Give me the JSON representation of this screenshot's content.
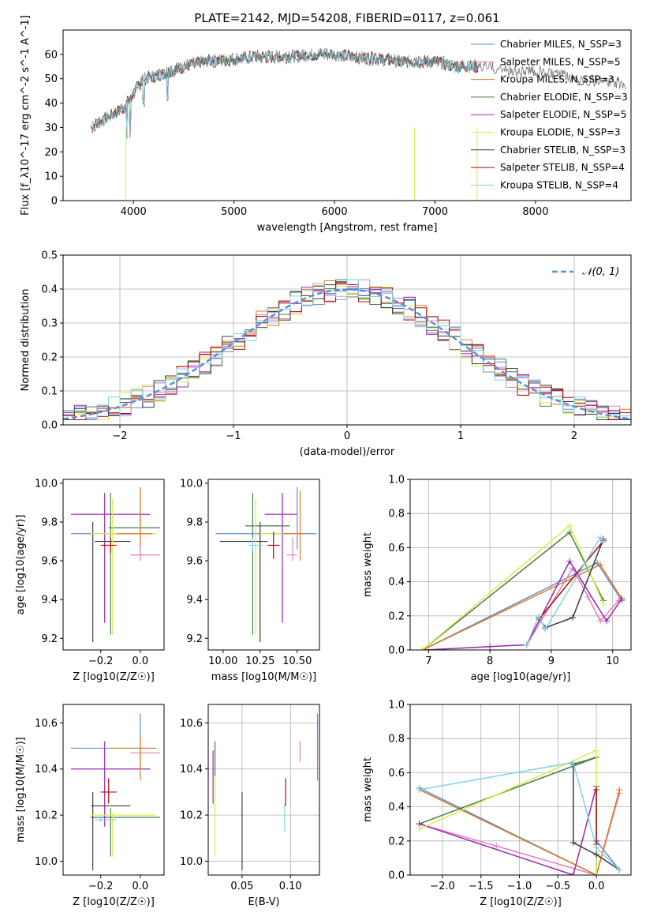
{
  "title": "PLATE=2142, MJD=54208, FIBERID=0117, z=0.061",
  "colors": {
    "chabrier_miles": "#5b8fd9",
    "salpeter_miles": "#e57fbc",
    "kroupa_miles": "#e07b20",
    "chabrier_elodie": "#4c7d4c",
    "salpeter_elodie": "#9b27b0",
    "kroupa_elodie": "#d7ee4a",
    "chabrier_stelib": "#3b3b3b",
    "salpeter_stelib": "#b3080a",
    "kroupa_stelib": "#7fd4e6"
  },
  "chart_data": [
    {
      "id": "spectrum",
      "type": "line",
      "xlabel": "wavelength [Angstrom, rest frame]",
      "ylabel": "Flux [f_λ10^-17 erg cm^-2 s^-1 A^-1]",
      "xlim": [
        3300,
        8950
      ],
      "ylim": [
        0,
        70
      ],
      "xticks": [
        4000,
        5000,
        6000,
        7000,
        8000
      ],
      "yticks": [
        0,
        10,
        20,
        30,
        40,
        50,
        60
      ],
      "legend_position": "top-right",
      "series": [
        {
          "name": "Chabrier MILES, N_SSP=3",
          "key": "chabrier_miles"
        },
        {
          "name": "Salpeter MILES, N_SSP=5",
          "key": "salpeter_miles"
        },
        {
          "name": "Kroupa MILES, N_SSP=3",
          "key": "kroupa_miles"
        },
        {
          "name": "Chabrier ELODIE, N_SSP=3",
          "key": "chabrier_elodie"
        },
        {
          "name": "Salpeter ELODIE, N_SSP=5",
          "key": "salpeter_elodie"
        },
        {
          "name": "Kroupa ELODIE, N_SSP=3",
          "key": "kroupa_elodie"
        },
        {
          "name": "Chabrier STELIB, N_SSP=3",
          "key": "chabrier_stelib"
        },
        {
          "name": "Salpeter STELIB, N_SSP=4",
          "key": "salpeter_stelib"
        },
        {
          "name": "Kroupa STELIB, N_SSP=4",
          "key": "kroupa_stelib"
        }
      ],
      "continuum": {
        "x": [
          3580,
          3700,
          3900,
          4000,
          4100,
          4300,
          4500,
          4700,
          5000,
          5200,
          5500,
          5800,
          6000,
          6200,
          6500,
          6700,
          7000,
          7200,
          7500,
          7800,
          8000,
          8300,
          8600,
          8900
        ],
        "y": [
          30,
          33,
          38,
          44,
          50,
          52,
          55,
          57,
          58,
          59,
          59,
          60,
          60,
          59,
          58,
          57,
          57,
          55,
          55,
          53,
          53,
          51,
          49,
          48
        ]
      }
    },
    {
      "id": "residuals",
      "type": "bar",
      "xlabel": "(data-model)/error",
      "ylabel": "Normed distribution",
      "xlim": [
        -2.5,
        2.5
      ],
      "ylim": [
        0,
        0.5
      ],
      "xticks": [
        -2,
        -1,
        0,
        1,
        2
      ],
      "yticks": [
        0.0,
        0.1,
        0.2,
        0.3,
        0.4,
        0.5
      ],
      "reference_curve": "𝒩(0,1)",
      "bin_edges_start": -2.5,
      "bin_width": 0.1
    },
    {
      "id": "age_vs_Z",
      "type": "scatter",
      "xlabel": "Z [log10(Z/Z☉)]",
      "ylabel": "age  [log10(age/yr)]",
      "xlim": [
        -0.39,
        0.12
      ],
      "ylim": [
        9.14,
        10.02
      ],
      "xticks": [
        -0.2,
        0.0
      ],
      "yticks": [
        9.2,
        9.4,
        9.6,
        9.8,
        10.0
      ]
    },
    {
      "id": "age_vs_mass",
      "type": "scatter",
      "xlabel": "mass [log10(M/M☉)]",
      "ylabel": "",
      "xlim": [
        9.9,
        10.65
      ],
      "ylim": [
        9.14,
        10.02
      ],
      "xticks": [
        10.0,
        10.25,
        10.5
      ],
      "yticks": [
        9.2,
        9.4,
        9.6,
        9.8,
        10.0
      ]
    },
    {
      "id": "weight_vs_age",
      "type": "line",
      "xlabel": "age  [log10(age/yr)]",
      "ylabel": "mass weight",
      "xlim": [
        6.7,
        10.3
      ],
      "ylim": [
        0,
        1
      ],
      "xticks": [
        7,
        8,
        9,
        10
      ],
      "yticks": [
        0.0,
        0.2,
        0.4,
        0.6,
        0.8,
        1.0
      ]
    },
    {
      "id": "mass_vs_Z",
      "type": "scatter",
      "xlabel": "Z [log10(Z/Z☉)]",
      "ylabel": "mass [log10(M/M☉)]",
      "xlim": [
        -0.39,
        0.12
      ],
      "ylim": [
        9.94,
        10.68
      ],
      "xticks": [
        -0.2,
        0.0
      ],
      "yticks": [
        10.0,
        10.2,
        10.4,
        10.6
      ]
    },
    {
      "id": "mass_vs_EBV",
      "type": "scatter",
      "xlabel": "E(B-V)",
      "ylabel": "",
      "xlim": [
        0.015,
        0.13
      ],
      "ylim": [
        9.94,
        10.68
      ],
      "xticks": [
        0.05,
        0.1
      ],
      "yticks": [
        10.0,
        10.2,
        10.4,
        10.6
      ]
    },
    {
      "id": "weight_vs_Z",
      "type": "line",
      "xlabel": "Z [log10(Z/Z☉)]",
      "ylabel": "mass weight",
      "xlim": [
        -2.42,
        0.45
      ],
      "ylim": [
        0,
        1
      ],
      "xticks": [
        -2.0,
        -1.5,
        -1.0,
        -0.5,
        0.0
      ],
      "yticks": [
        0.0,
        0.2,
        0.4,
        0.6,
        0.8,
        1.0
      ]
    }
  ],
  "legend2": "𝒩(0, 1)"
}
